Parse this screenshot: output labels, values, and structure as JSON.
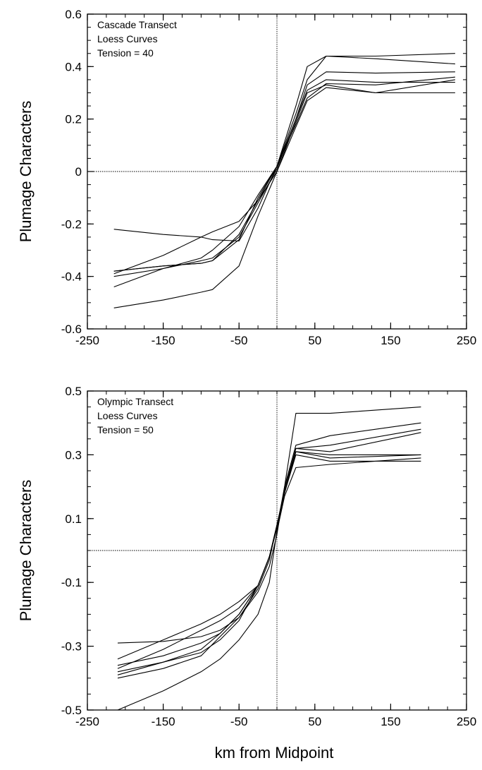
{
  "chart_data": [
    {
      "type": "line",
      "annotation": [
        "Cascade Transect",
        "Loess Curves",
        "Tension = 40"
      ],
      "xlabel": "",
      "ylabel": "Plumage Characters",
      "xlim": [
        -250,
        250
      ],
      "ylim": [
        -0.6,
        0.6
      ],
      "xticks": [
        "-250",
        "-150",
        "-50",
        "50",
        "150",
        "250"
      ],
      "yticks": [
        "-0.6",
        "-0.4",
        "-0.2",
        "0",
        "0.2",
        "0.4",
        "0.6"
      ],
      "x": [
        -215,
        -150,
        -100,
        -85,
        -50,
        -25,
        0,
        25,
        40,
        65,
        130,
        235
      ],
      "series": [
        {
          "values": [
            -0.22,
            -0.24,
            -0.25,
            -0.26,
            -0.265,
            -0.14,
            0.02,
            0.25,
            0.4,
            0.44,
            0.44,
            0.45
          ]
        },
        {
          "values": [
            -0.38,
            -0.36,
            -0.35,
            -0.34,
            -0.26,
            -0.1,
            0.02,
            0.22,
            0.35,
            0.44,
            0.43,
            0.41
          ]
        },
        {
          "values": [
            -0.39,
            -0.32,
            -0.25,
            -0.23,
            -0.19,
            -0.11,
            0.02,
            0.2,
            0.33,
            0.38,
            0.375,
            0.38
          ]
        },
        {
          "values": [
            -0.4,
            -0.37,
            -0.34,
            -0.33,
            -0.25,
            -0.12,
            0.01,
            0.2,
            0.31,
            0.35,
            0.34,
            0.34
          ]
        },
        {
          "values": [
            -0.44,
            -0.37,
            -0.33,
            -0.3,
            -0.21,
            -0.09,
            0.02,
            0.18,
            0.28,
            0.335,
            0.33,
            0.36
          ]
        },
        {
          "values": [
            -0.52,
            -0.49,
            -0.46,
            -0.45,
            -0.36,
            -0.17,
            0.0,
            0.17,
            0.27,
            0.32,
            0.3,
            0.3
          ]
        },
        {
          "values": [
            -0.38,
            -0.36,
            -0.35,
            -0.34,
            -0.24,
            -0.11,
            0.0,
            0.19,
            0.3,
            0.33,
            0.3,
            0.35
          ]
        }
      ],
      "grid": false,
      "reference_lines": {
        "x": 0,
        "y": 0
      }
    },
    {
      "type": "line",
      "annotation": [
        "Olympic Transect",
        "Loess Curves",
        "Tension = 50"
      ],
      "xlabel": "km from Midpoint",
      "ylabel": "Plumage Characters",
      "xlim": [
        -250,
        250
      ],
      "ylim": [
        -0.5,
        0.5
      ],
      "xticks": [
        "-250",
        "-150",
        "-50",
        "50",
        "150",
        "250"
      ],
      "yticks": [
        "-0.5",
        "-0.3",
        "-0.1",
        "0.1",
        "0.3",
        "0.5"
      ],
      "x": [
        -210,
        -150,
        -100,
        -75,
        -50,
        -25,
        -10,
        0,
        10,
        25,
        70,
        190
      ],
      "series": [
        {
          "values": [
            -0.29,
            -0.285,
            -0.27,
            -0.25,
            -0.21,
            -0.13,
            -0.05,
            0.05,
            0.2,
            0.43,
            0.43,
            0.45
          ]
        },
        {
          "values": [
            -0.34,
            -0.28,
            -0.23,
            -0.2,
            -0.16,
            -0.11,
            -0.02,
            0.07,
            0.2,
            0.33,
            0.36,
            0.4
          ]
        },
        {
          "values": [
            -0.37,
            -0.31,
            -0.25,
            -0.22,
            -0.18,
            -0.11,
            -0.02,
            0.07,
            0.19,
            0.32,
            0.33,
            0.38
          ]
        },
        {
          "values": [
            -0.38,
            -0.35,
            -0.31,
            -0.26,
            -0.2,
            -0.11,
            -0.02,
            0.08,
            0.19,
            0.32,
            0.31,
            0.37
          ]
        },
        {
          "values": [
            -0.4,
            -0.37,
            -0.33,
            -0.27,
            -0.21,
            -0.12,
            -0.03,
            0.08,
            0.18,
            0.31,
            0.29,
            0.3
          ]
        },
        {
          "values": [
            -0.39,
            -0.35,
            -0.32,
            -0.28,
            -0.22,
            -0.11,
            -0.02,
            0.08,
            0.18,
            0.3,
            0.28,
            0.28
          ]
        },
        {
          "values": [
            -0.5,
            -0.44,
            -0.38,
            -0.34,
            -0.28,
            -0.2,
            -0.1,
            0.06,
            0.17,
            0.26,
            0.27,
            0.29
          ]
        },
        {
          "values": [
            -0.36,
            -0.33,
            -0.29,
            -0.26,
            -0.2,
            -0.11,
            -0.02,
            0.07,
            0.18,
            0.31,
            0.3,
            0.3
          ]
        }
      ],
      "grid": false,
      "reference_lines": {
        "x": 0,
        "y": 0
      }
    }
  ]
}
